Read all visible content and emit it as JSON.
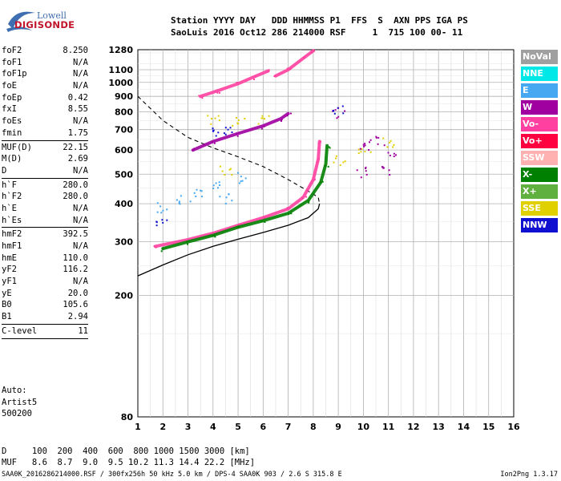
{
  "logo": {
    "line1": "Lowell",
    "line2": "DIGISONDE"
  },
  "header": {
    "row1": "Station YYYY DAY   DDD HHMMSS P1  FFS  S  AXN PPS IGA PS",
    "row2": "SaoLuis 2016 Oct12 286 214000 RSF     1  715 100 00- 11"
  },
  "params": [
    {
      "k": "foF2",
      "v": "8.250"
    },
    {
      "k": "foF1",
      "v": "N/A"
    },
    {
      "k": "foF1p",
      "v": "N/A"
    },
    {
      "k": "foE",
      "v": "N/A"
    },
    {
      "k": "foEp",
      "v": "0.42"
    },
    {
      "k": "fxI",
      "v": "8.55"
    },
    {
      "k": "foEs",
      "v": "N/A"
    },
    {
      "k": "fmin",
      "v": "1.75"
    },
    {
      "k": "MUF(D)",
      "v": "22.15"
    },
    {
      "k": "M(D)",
      "v": "2.69"
    },
    {
      "k": "D",
      "v": "N/A"
    },
    {
      "k": "h`F",
      "v": "280.0"
    },
    {
      "k": "h`F2",
      "v": "280.0"
    },
    {
      "k": "h`E",
      "v": "N/A"
    },
    {
      "k": "h`Es",
      "v": "N/A"
    },
    {
      "k": "hmF2",
      "v": "392.5"
    },
    {
      "k": "hmF1",
      "v": "N/A"
    },
    {
      "k": "hmE",
      "v": "110.0"
    },
    {
      "k": "yF2",
      "v": "116.2"
    },
    {
      "k": "yF1",
      "v": "N/A"
    },
    {
      "k": "yE",
      "v": "20.0"
    },
    {
      "k": "B0",
      "v": "105.6"
    },
    {
      "k": "B1",
      "v": "2.94"
    },
    {
      "k": "C-level",
      "v": "11"
    }
  ],
  "auto": {
    "l1": "Auto:",
    "l2": "Artist5",
    "l3": "500200"
  },
  "muf_table": {
    "row_d": "D     100  200  400  600  800 1000 1500 3000 [km]",
    "row_m": "MUF   8.6  8.7  9.0  9.5 10.2 11.3 14.4 22.2 [MHz]"
  },
  "footer": {
    "left": "SAA0K_2016286214000.RSF / 300fx256h 50 kHz 5.0 km / DPS-4 SAA0K 903 / 2.6 S 315.8 E",
    "right": "Ion2Png 1.3.17"
  },
  "legend": [
    {
      "label": "NoVal",
      "color": "#a0a0a0"
    },
    {
      "label": "NNE",
      "color": "#00e8e8"
    },
    {
      "label": "E",
      "color": "#46a8f0"
    },
    {
      "label": "W",
      "color": "#a000a0"
    },
    {
      "label": "Vo-",
      "color": "#ff40a0"
    },
    {
      "label": "Vo+",
      "color": "#ff0040"
    },
    {
      "label": "SSW",
      "color": "#ffb0b0"
    },
    {
      "label": "X-",
      "color": "#008000"
    },
    {
      "label": "X+",
      "color": "#60b040"
    },
    {
      "label": "SSE",
      "color": "#e0d000"
    },
    {
      "label": "NNW",
      "color": "#1010d0"
    }
  ],
  "chart_data": {
    "type": "scatter",
    "title": "",
    "xlabel": "",
    "ylabel": "",
    "x_range": [
      1,
      16
    ],
    "x_ticks": [
      "1",
      "2",
      "3",
      "4",
      "5",
      "6",
      "7",
      "8",
      "9",
      "10",
      "11",
      "12",
      "13",
      "14",
      "15",
      "16"
    ],
    "y_ticks": [
      "80",
      "200",
      "300",
      "400",
      "500",
      "600",
      "700",
      "800",
      "900",
      "1000",
      "1100",
      "1280"
    ],
    "y_tick_values": [
      80,
      200,
      300,
      400,
      500,
      600,
      700,
      800,
      900,
      1000,
      1100,
      1280
    ],
    "y_scale": "log",
    "y_range": [
      80,
      1280
    ],
    "grid": true,
    "series": [
      {
        "kind": "trace",
        "color": "#ff40a0",
        "points": [
          [
            1.7,
            290
          ],
          [
            3,
            305
          ],
          [
            4,
            320
          ],
          [
            5,
            340
          ],
          [
            6,
            360
          ],
          [
            7,
            385
          ],
          [
            7.6,
            420
          ],
          [
            8,
            480
          ],
          [
            8.2,
            560
          ],
          [
            8.25,
            640
          ]
        ]
      },
      {
        "kind": "trace",
        "color": "#008000",
        "points": [
          [
            2,
            285
          ],
          [
            3,
            300
          ],
          [
            4,
            315
          ],
          [
            5,
            335
          ],
          [
            6,
            352
          ],
          [
            7,
            372
          ],
          [
            7.8,
            410
          ],
          [
            8.3,
            470
          ],
          [
            8.5,
            540
          ],
          [
            8.55,
            620
          ]
        ]
      },
      {
        "kind": "trace",
        "color": "#a000a0",
        "points": [
          [
            3.2,
            600
          ],
          [
            4,
            640
          ],
          [
            5,
            680
          ],
          [
            6,
            720
          ],
          [
            6.7,
            760
          ],
          [
            7,
            790
          ]
        ]
      },
      {
        "kind": "trace",
        "color": "#ff40a0",
        "points": [
          [
            3.5,
            900
          ],
          [
            4.2,
            940
          ],
          [
            5,
            990
          ],
          [
            5.6,
            1040
          ],
          [
            6.2,
            1090
          ]
        ]
      },
      {
        "kind": "trace",
        "color": "#ff40a0",
        "points": [
          [
            6.5,
            1050
          ],
          [
            7,
            1100
          ],
          [
            7.6,
            1200
          ],
          [
            8,
            1270
          ]
        ]
      },
      {
        "kind": "cluster",
        "color": "#46a8f0",
        "points": [
          [
            2,
            390
          ],
          [
            3.5,
            440
          ],
          [
            4,
            470
          ],
          [
            5,
            490
          ],
          [
            4.5,
            420
          ],
          [
            2.8,
            410
          ]
        ]
      },
      {
        "kind": "cluster",
        "color": "#e0d000",
        "points": [
          [
            4,
            760
          ],
          [
            5,
            740
          ],
          [
            6,
            750
          ],
          [
            4.5,
            520
          ],
          [
            9,
            560
          ],
          [
            10,
            600
          ],
          [
            11,
            640
          ]
        ]
      },
      {
        "kind": "cluster",
        "color": "#a000a0",
        "points": [
          [
            9,
            800
          ],
          [
            10,
            610
          ],
          [
            10.5,
            640
          ],
          [
            11,
            600
          ],
          [
            10,
            510
          ],
          [
            11,
            520
          ]
        ]
      },
      {
        "kind": "cluster",
        "color": "#1010d0",
        "points": [
          [
            4.2,
            690
          ],
          [
            4.5,
            700
          ],
          [
            9,
            810
          ],
          [
            2,
            350
          ]
        ]
      }
    ],
    "profile": {
      "color": "#000",
      "points": [
        [
          1,
          232
        ],
        [
          2,
          252
        ],
        [
          3,
          272
        ],
        [
          4,
          290
        ],
        [
          5,
          306
        ],
        [
          6,
          322
        ],
        [
          7,
          340
        ],
        [
          7.8,
          360
        ],
        [
          8.2,
          385
        ],
        [
          8.25,
          400
        ]
      ]
    },
    "dashed_profile": {
      "color": "#000",
      "points": [
        [
          1,
          900
        ],
        [
          2,
          750
        ],
        [
          3,
          660
        ],
        [
          4,
          610
        ],
        [
          5,
          570
        ],
        [
          6,
          530
        ],
        [
          7,
          480
        ],
        [
          7.8,
          440
        ],
        [
          8.2,
          420
        ],
        [
          8.25,
          400
        ]
      ]
    }
  }
}
